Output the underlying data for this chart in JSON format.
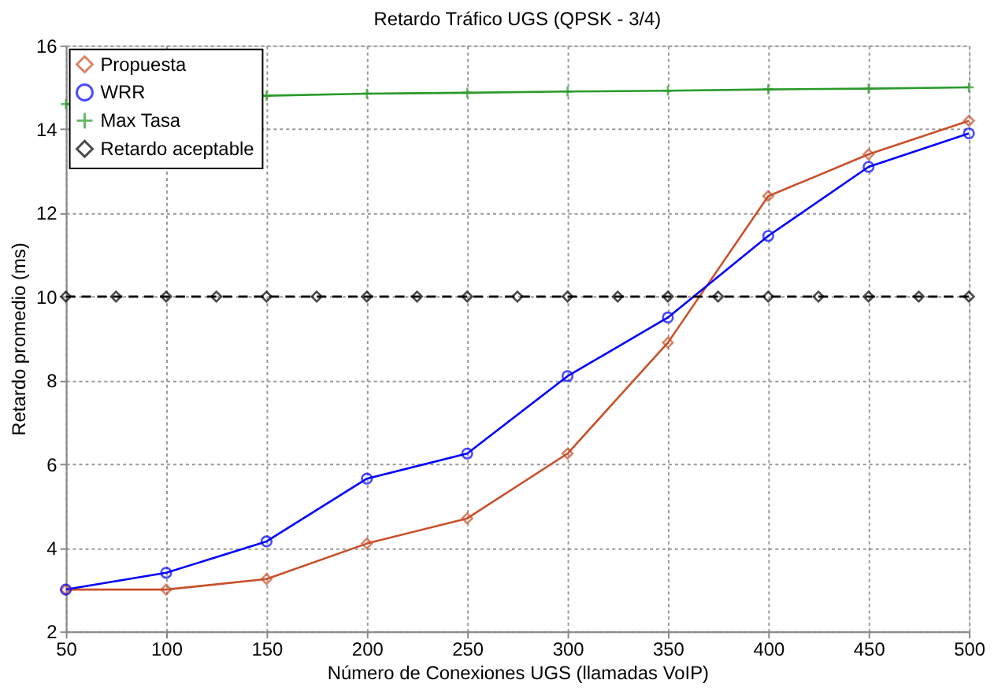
{
  "chart_data": {
    "type": "line",
    "title": "Retardo Tráfico UGS (QPSK - 3/4)",
    "xlabel": "Número de Conexiones UGS (llamadas VoIP)",
    "ylabel": "Retardo promedio (ms)",
    "x": [
      50,
      100,
      150,
      200,
      250,
      300,
      350,
      400,
      450,
      500
    ],
    "series": [
      {
        "name": "Propuesta",
        "color": "#c8502a",
        "marker": "diamond",
        "line_style": "solid",
        "values": [
          3.0,
          3.0,
          3.25,
          4.1,
          4.7,
          6.25,
          8.9,
          12.4,
          13.4,
          14.2
        ]
      },
      {
        "name": "WRR",
        "color": "#0000ff",
        "marker": "circle",
        "line_style": "solid",
        "values": [
          3.0,
          3.4,
          4.15,
          5.65,
          6.25,
          8.1,
          9.5,
          11.45,
          13.1,
          13.9
        ]
      },
      {
        "name": "Max Tasa",
        "color": "#2a9a2a",
        "marker": "cross",
        "line_style": "solid",
        "values": [
          14.6,
          null,
          14.8,
          14.85,
          14.87,
          14.9,
          14.92,
          14.95,
          14.97,
          15.0
        ]
      },
      {
        "name": "Retardo aceptable",
        "color": "#000000",
        "marker": "diamond",
        "line_style": "dashed",
        "x": [
          50,
          75,
          100,
          125,
          150,
          175,
          200,
          225,
          250,
          275,
          300,
          325,
          350,
          375,
          400,
          425,
          450,
          475,
          500
        ],
        "values": [
          10,
          10,
          10,
          10,
          10,
          10,
          10,
          10,
          10,
          10,
          10,
          10,
          10,
          10,
          10,
          10,
          10,
          10,
          10
        ]
      }
    ],
    "xlim": [
      50,
      500
    ],
    "xticks": [
      50,
      100,
      150,
      200,
      250,
      300,
      350,
      400,
      450,
      500
    ],
    "ylim": [
      2,
      16
    ],
    "yticks": [
      2,
      4,
      6,
      8,
      10,
      12,
      14,
      16
    ],
    "grid": true,
    "legend": "top left"
  }
}
